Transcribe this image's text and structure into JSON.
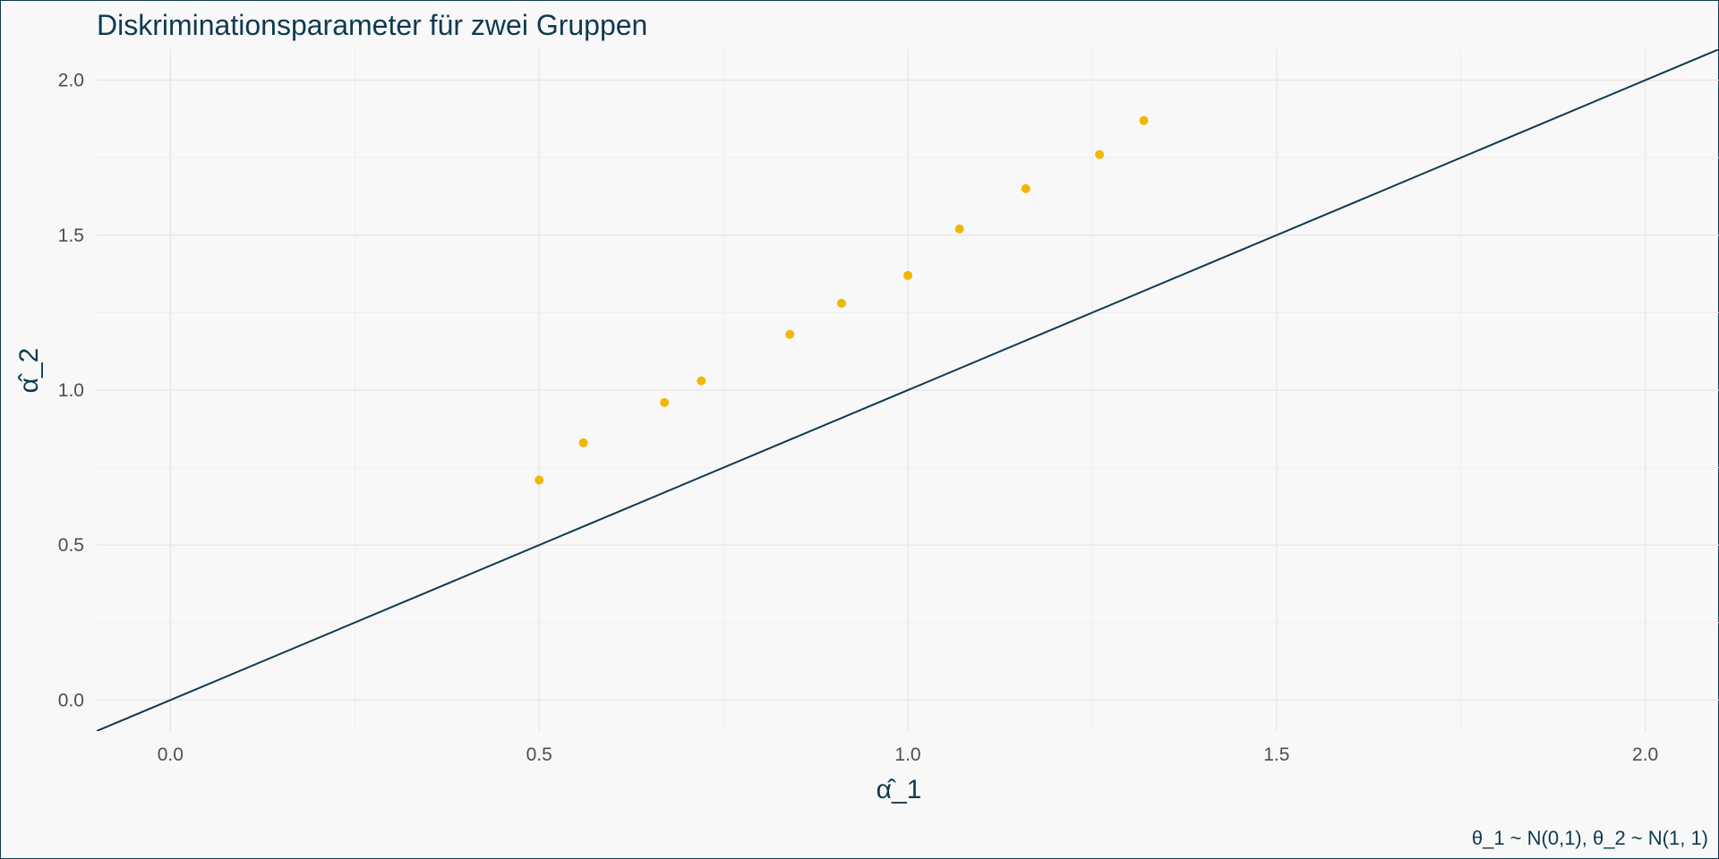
{
  "title": "Diskriminationsparameter für zwei Gruppen",
  "caption": "θ_1 ~ N(0,1), θ_2 ~ N(1, 1)",
  "colors": {
    "background": "#f8f8f8",
    "points": "#f2b705",
    "line": "#0e3a52",
    "grid_major": "#e6e6e6",
    "grid_minor": "#efefef",
    "text": "#0e3a52",
    "tick_text": "#4d4d4d"
  },
  "chart_data": {
    "type": "scatter",
    "title": "Diskriminationsparameter für zwei Gruppen",
    "xlabel": "α̂_1",
    "ylabel": "α̂_2",
    "xlim": [
      -0.1,
      2.1
    ],
    "ylim": [
      -0.1,
      2.1
    ],
    "x_ticks": [
      0.0,
      0.5,
      1.0,
      1.5,
      2.0
    ],
    "y_ticks": [
      0.0,
      0.5,
      1.0,
      1.5,
      2.0
    ],
    "x_tick_labels": [
      "0.0",
      "0.5",
      "1.0",
      "1.5",
      "2.0"
    ],
    "y_tick_labels": [
      "0.0",
      "0.5",
      "1.0",
      "1.5",
      "2.0"
    ],
    "grid": true,
    "x": [
      0.5,
      0.56,
      0.67,
      0.72,
      0.84,
      0.91,
      1.0,
      1.07,
      1.16,
      1.26,
      1.32
    ],
    "y": [
      0.71,
      0.83,
      0.96,
      1.03,
      1.18,
      1.28,
      1.37,
      1.52,
      1.65,
      1.76,
      1.87
    ],
    "reference_line": {
      "intercept": 0,
      "slope": 1
    }
  }
}
